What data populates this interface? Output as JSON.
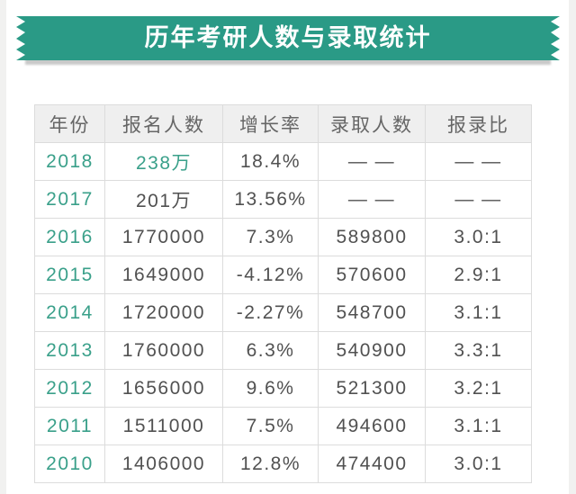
{
  "ribbon": {
    "title": "历年考研人数与录取统计"
  },
  "table": {
    "headers": [
      "年份",
      "报名人数",
      "增长率",
      "录取人数",
      "报录比"
    ],
    "rows": [
      {
        "year": "2018",
        "applicants": "238万",
        "growth": "18.4%",
        "admitted": "— —",
        "ratio": "— —",
        "applicants_green": true
      },
      {
        "year": "2017",
        "applicants": "201万",
        "growth": "13.56%",
        "admitted": "— —",
        "ratio": "— —",
        "applicants_green": false
      },
      {
        "year": "2016",
        "applicants": "1770000",
        "growth": "7.3%",
        "admitted": "589800",
        "ratio": "3.0:1",
        "applicants_green": false
      },
      {
        "year": "2015",
        "applicants": "1649000",
        "growth": "-4.12%",
        "admitted": "570600",
        "ratio": "2.9:1",
        "applicants_green": false
      },
      {
        "year": "2014",
        "applicants": "1720000",
        "growth": "-2.27%",
        "admitted": "548700",
        "ratio": "3.1:1",
        "applicants_green": false
      },
      {
        "year": "2013",
        "applicants": "1760000",
        "growth": "6.3%",
        "admitted": "540900",
        "ratio": "3.3:1",
        "applicants_green": false
      },
      {
        "year": "2012",
        "applicants": "1656000",
        "growth": "9.6%",
        "admitted": "521300",
        "ratio": "3.2:1",
        "applicants_green": false
      },
      {
        "year": "2011",
        "applicants": "1511000",
        "growth": "7.5%",
        "admitted": "494600",
        "ratio": "3.1:1",
        "applicants_green": false
      },
      {
        "year": "2010",
        "applicants": "1406000",
        "growth": "12.8%",
        "admitted": "474400",
        "ratio": "3.0:1",
        "applicants_green": false
      }
    ]
  },
  "colors": {
    "ribbon_green": "#2a9a86",
    "accent_green": "#3aa08a",
    "cell_text": "#515151",
    "header_text": "#666666",
    "header_bg": "#efefef",
    "border": "#dcdcdc",
    "shadow": "#c9c9c9",
    "gutter": "#f1f1f0"
  },
  "chart_data": {
    "type": "table",
    "title": "历年考研人数与录取统计",
    "columns": [
      "年份",
      "报名人数",
      "增长率",
      "录取人数",
      "报录比"
    ],
    "rows": [
      [
        "2018",
        "238万",
        "18.4%",
        "— —",
        "— —"
      ],
      [
        "2017",
        "201万",
        "13.56%",
        "— —",
        "— —"
      ],
      [
        "2016",
        "1770000",
        "7.3%",
        "589800",
        "3.0:1"
      ],
      [
        "2015",
        "1649000",
        "-4.12%",
        "570600",
        "2.9:1"
      ],
      [
        "2014",
        "1720000",
        "-2.27%",
        "548700",
        "3.1:1"
      ],
      [
        "2013",
        "1760000",
        "6.3%",
        "540900",
        "3.3:1"
      ],
      [
        "2012",
        "1656000",
        "9.6%",
        "521300",
        "3.2:1"
      ],
      [
        "2011",
        "1511000",
        "7.5%",
        "494600",
        "3.1:1"
      ],
      [
        "2010",
        "1406000",
        "12.8%",
        "474400",
        "3.0:1"
      ]
    ]
  }
}
